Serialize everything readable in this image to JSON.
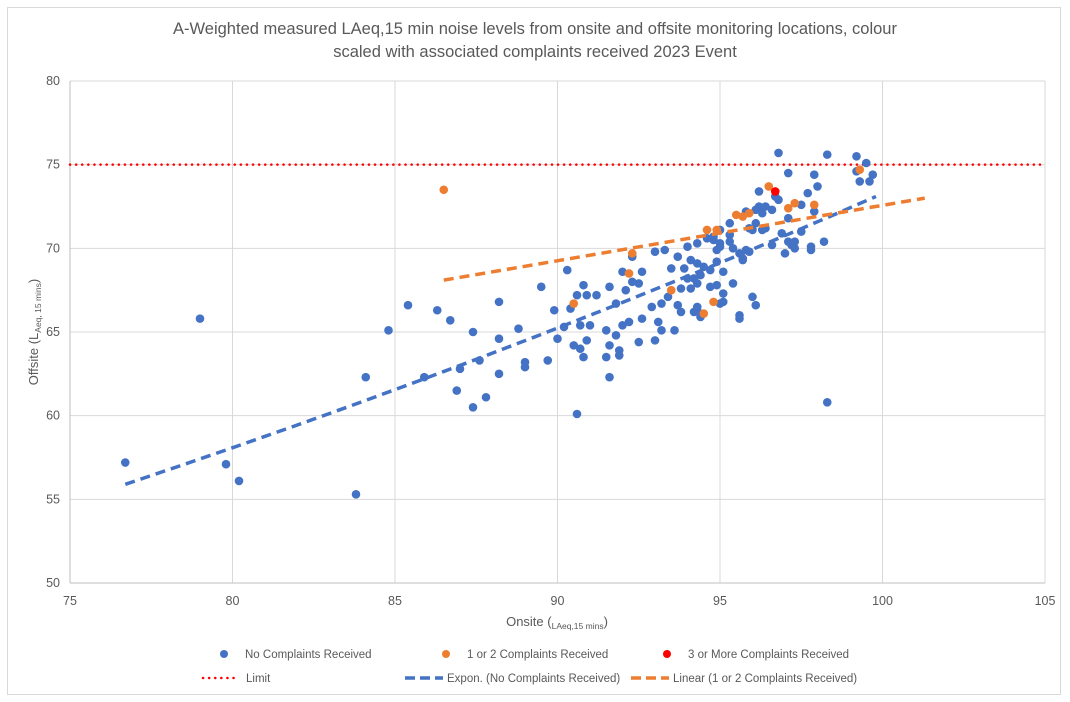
{
  "chart_data": {
    "type": "scatter",
    "title_line1": "A-Weighted measured LAeq,15 min noise levels from onsite and offsite monitoring locations, colour",
    "title_line2": "scaled with associated complaints received 2023 Event",
    "xlabel_main": "Onsite (",
    "xlabel_sub": "LAeq,15 mins",
    "xlabel_close": ")",
    "ylabel_main": "Offsite (L",
    "ylabel_sub": "Aeq, 15 mins",
    "ylabel_close": ")",
    "xlim": [
      75,
      105
    ],
    "ylim": [
      50,
      80
    ],
    "xticks": [
      "75",
      "80",
      "85",
      "90",
      "95",
      "100",
      "105"
    ],
    "yticks": [
      "50",
      "55",
      "60",
      "65",
      "70",
      "75",
      "80"
    ],
    "grid": true,
    "legend_position": "bottom",
    "colors": {
      "no_complaints": "#4472c4",
      "one_two": "#ed7d31",
      "three_plus": "#ff0000",
      "limit": "#ff0000",
      "grid": "#d9d9d9",
      "text": "#595959"
    },
    "series": [
      {
        "name": "No Complaints Received",
        "color": "#4472c4",
        "points": [
          [
            76.7,
            57.2
          ],
          [
            79.0,
            65.8
          ],
          [
            79.8,
            57.1
          ],
          [
            80.2,
            56.1
          ],
          [
            83.8,
            55.3
          ],
          [
            84.1,
            62.3
          ],
          [
            84.8,
            65.1
          ],
          [
            85.4,
            66.6
          ],
          [
            85.9,
            62.3
          ],
          [
            86.3,
            66.3
          ],
          [
            86.7,
            65.7
          ],
          [
            86.9,
            61.5
          ],
          [
            87.0,
            62.8
          ],
          [
            87.4,
            65.0
          ],
          [
            87.4,
            60.5
          ],
          [
            87.6,
            63.3
          ],
          [
            87.8,
            61.1
          ],
          [
            88.2,
            66.8
          ],
          [
            88.2,
            64.6
          ],
          [
            88.2,
            62.5
          ],
          [
            88.8,
            65.2
          ],
          [
            89.0,
            63.2
          ],
          [
            89.0,
            62.9
          ],
          [
            89.5,
            67.7
          ],
          [
            89.7,
            63.3
          ],
          [
            89.9,
            66.3
          ],
          [
            90.0,
            64.6
          ],
          [
            90.2,
            65.3
          ],
          [
            90.3,
            68.7
          ],
          [
            90.4,
            66.4
          ],
          [
            90.5,
            64.2
          ],
          [
            90.6,
            67.2
          ],
          [
            90.6,
            60.1
          ],
          [
            90.7,
            65.4
          ],
          [
            90.7,
            64.0
          ],
          [
            90.8,
            67.8
          ],
          [
            90.8,
            63.5
          ],
          [
            90.9,
            67.2
          ],
          [
            90.9,
            64.5
          ],
          [
            91.0,
            65.4
          ],
          [
            91.2,
            67.2
          ],
          [
            91.5,
            65.1
          ],
          [
            91.5,
            63.5
          ],
          [
            91.6,
            62.3
          ],
          [
            91.6,
            64.2
          ],
          [
            91.6,
            67.7
          ],
          [
            91.8,
            64.8
          ],
          [
            91.8,
            66.7
          ],
          [
            91.9,
            63.6
          ],
          [
            91.9,
            63.9
          ],
          [
            92.0,
            68.6
          ],
          [
            92.0,
            65.4
          ],
          [
            92.1,
            67.5
          ],
          [
            92.2,
            65.6
          ],
          [
            92.3,
            69.5
          ],
          [
            92.3,
            68.0
          ],
          [
            92.5,
            64.4
          ],
          [
            92.5,
            67.9
          ],
          [
            92.6,
            68.6
          ],
          [
            92.6,
            65.8
          ],
          [
            92.9,
            66.5
          ],
          [
            93.0,
            69.8
          ],
          [
            93.0,
            64.5
          ],
          [
            93.1,
            65.6
          ],
          [
            93.2,
            65.1
          ],
          [
            93.2,
            66.7
          ],
          [
            93.3,
            69.9
          ],
          [
            93.4,
            67.1
          ],
          [
            93.5,
            68.8
          ],
          [
            93.6,
            65.1
          ],
          [
            93.7,
            69.5
          ],
          [
            93.7,
            66.6
          ],
          [
            93.8,
            67.6
          ],
          [
            93.8,
            66.2
          ],
          [
            93.9,
            68.8
          ],
          [
            94.0,
            68.2
          ],
          [
            94.0,
            70.1
          ],
          [
            94.1,
            69.3
          ],
          [
            94.1,
            67.6
          ],
          [
            94.2,
            66.2
          ],
          [
            94.2,
            68.2
          ],
          [
            94.3,
            70.3
          ],
          [
            94.3,
            69.1
          ],
          [
            94.3,
            66.5
          ],
          [
            94.3,
            67.9
          ],
          [
            94.3,
            66.3
          ],
          [
            94.4,
            68.4
          ],
          [
            94.4,
            65.9
          ],
          [
            94.5,
            68.9
          ],
          [
            94.6,
            70.6
          ],
          [
            94.7,
            67.7
          ],
          [
            94.7,
            68.7
          ],
          [
            94.8,
            70.5
          ],
          [
            94.8,
            70.7
          ],
          [
            94.9,
            67.8
          ],
          [
            94.9,
            69.2
          ],
          [
            94.9,
            69.9
          ],
          [
            95.0,
            66.7
          ],
          [
            95.0,
            71.1
          ],
          [
            95.0,
            70.3
          ],
          [
            95.0,
            70.1
          ],
          [
            95.1,
            67.3
          ],
          [
            95.1,
            66.8
          ],
          [
            95.1,
            68.6
          ],
          [
            95.3,
            70.8
          ],
          [
            95.3,
            70.4
          ],
          [
            95.3,
            71.5
          ],
          [
            95.4,
            70.0
          ],
          [
            95.4,
            67.9
          ],
          [
            95.6,
            66.0
          ],
          [
            95.6,
            65.8
          ],
          [
            95.6,
            69.7
          ],
          [
            95.7,
            69.3
          ],
          [
            95.7,
            69.4
          ],
          [
            95.8,
            72.2
          ],
          [
            95.8,
            69.9
          ],
          [
            95.9,
            69.8
          ],
          [
            95.9,
            71.2
          ],
          [
            96.0,
            67.1
          ],
          [
            96.0,
            71.1
          ],
          [
            96.1,
            66.6
          ],
          [
            96.1,
            72.3
          ],
          [
            96.1,
            71.5
          ],
          [
            96.2,
            73.4
          ],
          [
            96.2,
            72.5
          ],
          [
            96.3,
            71.1
          ],
          [
            96.3,
            72.1
          ],
          [
            96.4,
            72.5
          ],
          [
            96.4,
            71.2
          ],
          [
            96.6,
            72.3
          ],
          [
            96.6,
            70.2
          ],
          [
            96.7,
            73.1
          ],
          [
            96.8,
            72.9
          ],
          [
            96.8,
            75.7
          ],
          [
            96.9,
            70.9
          ],
          [
            97.0,
            69.7
          ],
          [
            97.1,
            74.5
          ],
          [
            97.1,
            70.4
          ],
          [
            97.1,
            71.8
          ],
          [
            97.2,
            70.2
          ],
          [
            97.3,
            70.0
          ],
          [
            97.3,
            70.4
          ],
          [
            97.5,
            72.6
          ],
          [
            97.5,
            71.0
          ],
          [
            97.7,
            73.3
          ],
          [
            97.8,
            69.9
          ],
          [
            97.8,
            70.1
          ],
          [
            97.9,
            74.4
          ],
          [
            97.9,
            72.2
          ],
          [
            98.0,
            73.7
          ],
          [
            98.2,
            70.4
          ],
          [
            98.3,
            60.8
          ],
          [
            98.3,
            75.6
          ],
          [
            99.2,
            75.5
          ],
          [
            99.2,
            74.6
          ],
          [
            99.3,
            74.0
          ],
          [
            99.5,
            75.1
          ],
          [
            99.6,
            74.0
          ],
          [
            99.7,
            74.4
          ]
        ]
      },
      {
        "name": "1 or 2 Complaints Received",
        "color": "#ed7d31",
        "points": [
          [
            86.5,
            73.5
          ],
          [
            90.5,
            66.7
          ],
          [
            92.2,
            68.5
          ],
          [
            92.3,
            69.7
          ],
          [
            93.5,
            67.5
          ],
          [
            94.5,
            66.1
          ],
          [
            94.6,
            71.1
          ],
          [
            94.8,
            66.8
          ],
          [
            94.9,
            71.1
          ],
          [
            95.5,
            72.0
          ],
          [
            95.7,
            71.9
          ],
          [
            95.9,
            72.1
          ],
          [
            96.5,
            73.7
          ],
          [
            97.1,
            72.4
          ],
          [
            97.3,
            72.7
          ],
          [
            97.9,
            72.6
          ],
          [
            99.3,
            74.7
          ]
        ]
      },
      {
        "name": "3 or More Complaints Received",
        "color": "#ff0000",
        "points": [
          [
            96.7,
            73.4
          ]
        ]
      }
    ],
    "lines": [
      {
        "name": "Limit",
        "style": "dotted",
        "color": "#ff0000",
        "y": 75,
        "x": [
          75,
          105
        ]
      },
      {
        "name": "Expon. (No Complaints Received)",
        "style": "dashed",
        "color": "#4472c4",
        "type": "exponential",
        "x": [
          76.7,
          99.8
        ],
        "y": [
          55.9,
          73.1
        ]
      },
      {
        "name": "Linear (1 or 2 Complaints Received)",
        "style": "dashed",
        "color": "#ed7d31",
        "type": "linear",
        "x": [
          86.5,
          101.3
        ],
        "y": [
          68.1,
          73.0
        ]
      }
    ],
    "legend": [
      {
        "label": "No Complaints Received",
        "kind": "marker",
        "color": "#4472c4"
      },
      {
        "label": "1 or 2 Complaints Received",
        "kind": "marker",
        "color": "#ed7d31"
      },
      {
        "label": "3 or More Complaints Received",
        "kind": "marker",
        "color": "#ff0000"
      },
      {
        "label": "Limit",
        "kind": "dotted",
        "color": "#ff0000"
      },
      {
        "label": "Expon. (No Complaints Received)",
        "kind": "dashed",
        "color": "#4472c4"
      },
      {
        "label": "Linear (1 or 2 Complaints Received)",
        "kind": "dashed",
        "color": "#ed7d31"
      }
    ]
  }
}
